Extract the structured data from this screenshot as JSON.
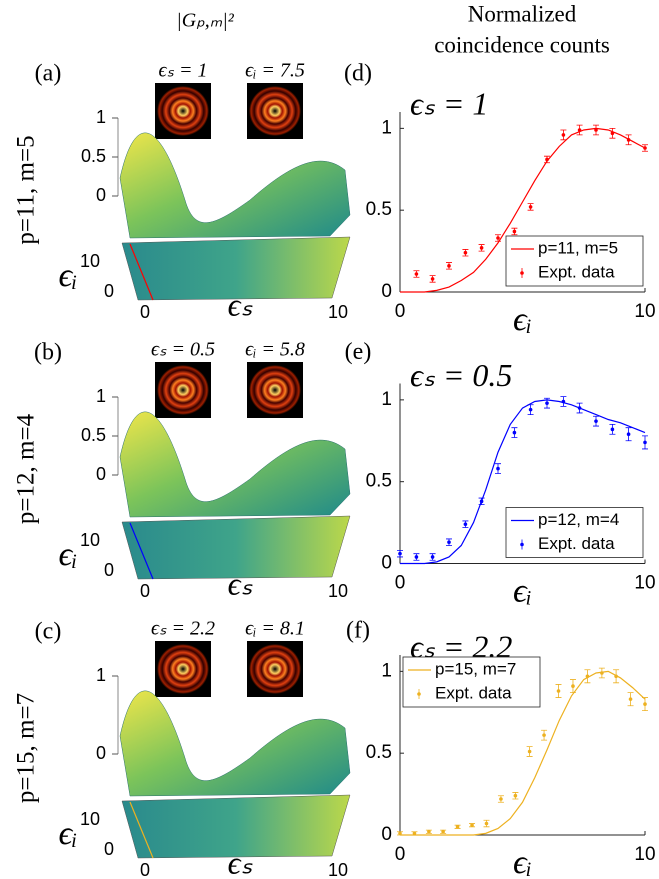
{
  "header": {
    "left": "|Gₚ,ₘ|²",
    "right": [
      "Normalized",
      "coincidence counts"
    ]
  },
  "chart_data": [
    {
      "type": "surface",
      "label": "(a)",
      "side_label": "p=11, m=5",
      "insets": [
        "ϵₛ = 1",
        "ϵᵢ = 7.5"
      ],
      "zlim": [
        0,
        1
      ],
      "zticks": [
        0,
        0.5,
        1
      ],
      "xlim": [
        0,
        10
      ],
      "xticks": [
        0,
        10
      ],
      "ylim": [
        0,
        10
      ],
      "yticks": [
        0,
        10
      ],
      "xlabel": "ϵₛ",
      "ylabel": "ϵᵢ",
      "color": "#ff0000"
    },
    {
      "type": "surface",
      "label": "(b)",
      "side_label": "p=12, m=4",
      "insets": [
        "ϵₛ = 0.5",
        "ϵᵢ = 5.8"
      ],
      "zlim": [
        0,
        1
      ],
      "zticks": [
        0,
        0.5,
        1
      ],
      "xlim": [
        0,
        10
      ],
      "xticks": [
        0,
        10
      ],
      "ylim": [
        0,
        10
      ],
      "yticks": [
        0,
        10
      ],
      "xlabel": "ϵₛ",
      "ylabel": "ϵᵢ",
      "color": "#0000ff"
    },
    {
      "type": "surface",
      "label": "(c)",
      "side_label": "p=15, m=7",
      "insets": [
        "ϵₛ = 2.2",
        "ϵᵢ = 8.1"
      ],
      "zlim": [
        0,
        1
      ],
      "zticks": [
        0,
        1
      ],
      "xlim": [
        0,
        10
      ],
      "xticks": [
        0,
        10
      ],
      "ylim": [
        0,
        10
      ],
      "yticks": [
        0,
        10
      ],
      "xlabel": "ϵₛ",
      "ylabel": "ϵᵢ",
      "color": "#edb120"
    },
    {
      "type": "line",
      "label": "(d)",
      "annotation": "ϵₛ = 1",
      "xlabel": "ϵᵢ",
      "xlim": [
        0,
        10
      ],
      "xticks": [
        0,
        10
      ],
      "ylim": [
        0,
        1.1
      ],
      "yticks": [
        0,
        0.5,
        1
      ],
      "legend": "lower right",
      "series": [
        {
          "name": "p=11, m=5",
          "color": "#ff0000",
          "style": "line",
          "x": [
            0,
            0.5,
            1,
            1.5,
            2,
            2.5,
            3,
            3.5,
            4,
            4.5,
            5,
            5.5,
            6,
            6.5,
            7,
            7.5,
            8,
            8.5,
            9,
            9.5,
            10
          ],
          "values": [
            0,
            0,
            0,
            0.01,
            0.03,
            0.07,
            0.12,
            0.2,
            0.3,
            0.42,
            0.55,
            0.68,
            0.8,
            0.89,
            0.96,
            0.99,
            1.0,
            0.99,
            0.96,
            0.92,
            0.88
          ]
        },
        {
          "name": "Expt. data",
          "color": "#ff0000",
          "style": "errorbar",
          "x": [
            0.67,
            1.33,
            2,
            2.67,
            3.33,
            4,
            4.67,
            5.33,
            6,
            6.67,
            7.33,
            8,
            8.67,
            9.33,
            10
          ],
          "values": [
            0.11,
            0.08,
            0.16,
            0.24,
            0.27,
            0.33,
            0.37,
            0.52,
            0.81,
            0.96,
            0.99,
            0.99,
            0.97,
            0.93,
            0.88
          ],
          "errors": [
            0.02,
            0.02,
            0.02,
            0.02,
            0.02,
            0.02,
            0.02,
            0.02,
            0.02,
            0.03,
            0.03,
            0.03,
            0.03,
            0.03,
            0.02
          ]
        }
      ]
    },
    {
      "type": "line",
      "label": "(e)",
      "annotation": "ϵₛ = 0.5",
      "xlabel": "ϵᵢ",
      "xlim": [
        0,
        10
      ],
      "xticks": [
        0,
        10
      ],
      "ylim": [
        0,
        1.1
      ],
      "yticks": [
        0,
        0.5,
        1
      ],
      "legend": "lower right",
      "series": [
        {
          "name": "p=12, m=4",
          "color": "#0000ff",
          "style": "line",
          "x": [
            0,
            0.5,
            1,
            1.5,
            2,
            2.5,
            3,
            3.5,
            4,
            4.5,
            5,
            5.5,
            6,
            6.5,
            7,
            7.5,
            8,
            8.5,
            9,
            9.5,
            10
          ],
          "values": [
            0,
            0,
            0,
            0.01,
            0.04,
            0.11,
            0.25,
            0.45,
            0.68,
            0.85,
            0.95,
            0.99,
            1.0,
            0.99,
            0.97,
            0.94,
            0.91,
            0.88,
            0.86,
            0.83,
            0.8
          ]
        },
        {
          "name": "Expt. data",
          "color": "#0000ff",
          "style": "errorbar",
          "x": [
            0,
            0.67,
            1.33,
            2,
            2.67,
            3.33,
            4,
            4.67,
            5.33,
            6,
            6.67,
            7.33,
            8,
            8.67,
            9.33,
            10
          ],
          "values": [
            0.06,
            0.04,
            0.04,
            0.13,
            0.24,
            0.38,
            0.58,
            0.8,
            0.94,
            0.98,
            0.99,
            0.95,
            0.87,
            0.82,
            0.79,
            0.74
          ],
          "errors": [
            0.02,
            0.02,
            0.02,
            0.02,
            0.02,
            0.02,
            0.03,
            0.03,
            0.03,
            0.03,
            0.03,
            0.03,
            0.03,
            0.03,
            0.04,
            0.04
          ]
        }
      ]
    },
    {
      "type": "line",
      "label": "(f)",
      "annotation": "ϵₛ = 2.2",
      "xlabel": "ϵᵢ",
      "xlim": [
        0,
        10
      ],
      "xticks": [
        0,
        10
      ],
      "ylim": [
        0,
        1.1
      ],
      "yticks": [
        0,
        0.5,
        1
      ],
      "legend": "upper left",
      "series": [
        {
          "name": "p=15, m=7",
          "color": "#edb120",
          "style": "line",
          "x": [
            0,
            0.5,
            1,
            1.5,
            2,
            2.5,
            3,
            3.5,
            4,
            4.5,
            5,
            5.5,
            6,
            6.5,
            7,
            7.5,
            8,
            8.5,
            9,
            9.5,
            10
          ],
          "values": [
            0,
            0,
            0,
            0,
            0,
            0,
            0,
            0.01,
            0.04,
            0.1,
            0.2,
            0.35,
            0.52,
            0.7,
            0.85,
            0.95,
            0.99,
            1.0,
            0.96,
            0.9,
            0.83
          ]
        },
        {
          "name": "Expt. data",
          "color": "#edb120",
          "style": "errorbar",
          "x": [
            0,
            0.59,
            1.18,
            1.76,
            2.35,
            2.94,
            3.53,
            4.12,
            4.71,
            5.29,
            5.88,
            6.47,
            7.06,
            7.65,
            8.24,
            8.82,
            9.41,
            10
          ],
          "values": [
            0.01,
            0.01,
            0.02,
            0.02,
            0.05,
            0.06,
            0.07,
            0.22,
            0.24,
            0.51,
            0.61,
            0.88,
            0.91,
            0.97,
            0.99,
            0.97,
            0.83,
            0.8
          ],
          "errors": [
            0.01,
            0.01,
            0.01,
            0.01,
            0.01,
            0.01,
            0.02,
            0.02,
            0.02,
            0.03,
            0.03,
            0.04,
            0.04,
            0.04,
            0.03,
            0.04,
            0.04,
            0.04
          ]
        }
      ]
    }
  ]
}
